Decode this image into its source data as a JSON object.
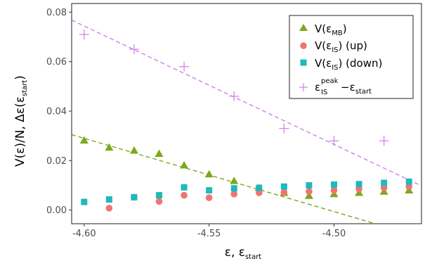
{
  "chart_data": {
    "type": "scatter",
    "xlabel": "ε, ε",
    "xlabel_sub": "start",
    "ylabel": "V(ε)/N, Δε(ε",
    "ylabel_sub": "start",
    "ylabel_close": ")",
    "xlim": [
      -4.605,
      -4.465
    ],
    "ylim": [
      -0.0055,
      0.0835
    ],
    "x_ticks": [
      -4.6,
      -4.55,
      -4.5
    ],
    "x_tick_labels": [
      "-4.60",
      "-4.55",
      "-4.50"
    ],
    "y_ticks": [
      0.0,
      0.02,
      0.04,
      0.06,
      0.08
    ],
    "y_tick_labels": [
      "0.00",
      "0.02",
      "0.04",
      "0.06",
      "0.08"
    ],
    "grid": false,
    "legend_position": "top-right",
    "series": [
      {
        "name": "V(ε",
        "name_sub": "MB",
        "name_tail": ")",
        "marker": "triangle",
        "color": "#7ca81c",
        "x": [
          -4.6,
          -4.59,
          -4.58,
          -4.57,
          -4.56,
          -4.55,
          -4.54,
          -4.53,
          -4.52,
          -4.51,
          -4.5,
          -4.49,
          -4.48,
          -4.47
        ],
        "y": [
          0.0282,
          0.0253,
          0.0241,
          0.0228,
          0.0181,
          0.0145,
          0.0118,
          0.009,
          0.007,
          0.0058,
          0.0065,
          0.007,
          0.0075,
          0.008
        ]
      },
      {
        "name": "V(ε",
        "name_sub": "IS",
        "name_tail": ") (up)",
        "marker": "circle",
        "color": "#f07470",
        "x": [
          -4.59,
          -4.58,
          -4.57,
          -4.56,
          -4.55,
          -4.54,
          -4.53,
          -4.52,
          -4.51,
          -4.5,
          -4.49,
          -4.48,
          -4.47
        ],
        "y": [
          0.0008,
          0.0052,
          0.0035,
          0.006,
          0.005,
          0.0065,
          0.007,
          0.0072,
          0.0075,
          0.008,
          0.0085,
          0.009,
          0.0095
        ]
      },
      {
        "name": "V(ε",
        "name_sub": "IS",
        "name_tail": ") (down)",
        "marker": "square",
        "color": "#1fb8bd",
        "x": [
          -4.6,
          -4.59,
          -4.58,
          -4.57,
          -4.56,
          -4.55,
          -4.54,
          -4.53,
          -4.52,
          -4.51,
          -4.5,
          -4.49,
          -4.48,
          -4.47
        ],
        "y": [
          0.0033,
          0.0043,
          0.0052,
          0.006,
          0.0092,
          0.008,
          0.0088,
          0.009,
          0.0095,
          0.01,
          0.0103,
          0.0105,
          0.011,
          0.0115
        ]
      },
      {
        "name": "ε",
        "name_sub": "IS",
        "name_sup": "peak",
        "name_tail": "−ε",
        "name_tail_sub": "start",
        "marker": "plus",
        "color": "#cc80ee",
        "x": [
          -4.6,
          -4.58,
          -4.56,
          -4.54,
          -4.52,
          -4.5,
          -4.48
        ],
        "y": [
          0.071,
          0.065,
          0.058,
          0.046,
          0.033,
          0.028,
          0.028
        ]
      }
    ],
    "fit_lines": [
      {
        "color": "#7ca81c",
        "x": [
          -4.605,
          -4.4835
        ],
        "y": [
          0.0305,
          -0.0055
        ]
      },
      {
        "color": "#cc80ee",
        "x": [
          -4.605,
          -4.465
        ],
        "y": [
          0.0768,
          0.0098
        ]
      }
    ]
  }
}
